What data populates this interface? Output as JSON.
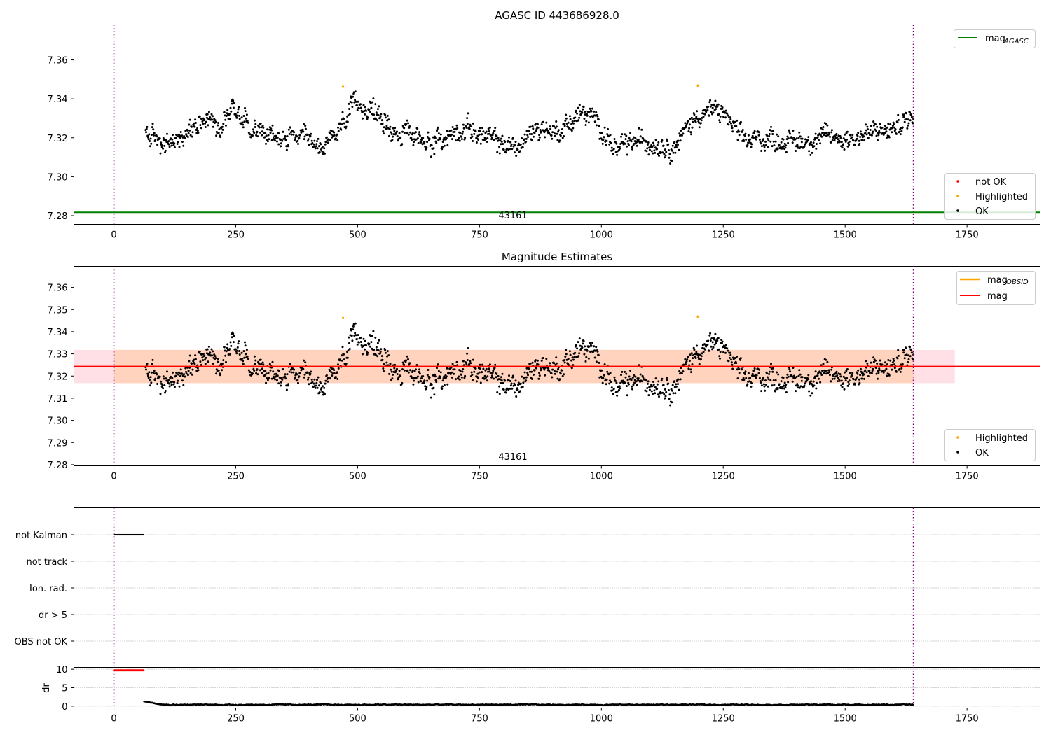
{
  "colors": {
    "ok": "#000000",
    "not_ok": "#ff0000",
    "highlighted": "#ffa500",
    "mag_agasc": "#008000",
    "mag_obsid": "#ffa500",
    "mag": "#ff0000",
    "band_obsid": "#ffd3bd",
    "band_mag": "#ffe0e6",
    "obs_boundary": "#800080",
    "grid": "#b0b0b0"
  },
  "chart_data": [
    {
      "type": "scatter",
      "title": "AGASC ID 443686928.0",
      "xlim": [
        -82,
        1900
      ],
      "ylim": [
        7.2755,
        7.378
      ],
      "xticks": [
        "0",
        "250",
        "500",
        "750",
        "1000",
        "1250",
        "1500",
        "1750"
      ],
      "yticks": [
        "7.28",
        "7.30",
        "7.32",
        "7.34",
        "7.36"
      ],
      "obsid_label": "43161",
      "obs_boundaries": [
        0,
        1640
      ],
      "mag_agasc": 7.2817,
      "highlighted_points": [
        [
          470,
          7.3462
        ],
        [
          1198,
          7.3468
        ]
      ],
      "series": [
        {
          "name": "not OK",
          "values": []
        },
        {
          "name": "Highlighted",
          "values": [
            [
              470,
              7.3462
            ],
            [
              1198,
              7.3468
            ]
          ]
        },
        {
          "name": "OK",
          "x_range": [
            65,
            1640
          ],
          "mean": 7.3243
        }
      ],
      "legend_lines": [
        {
          "label_main": "mag",
          "label_sub": "AGASC"
        }
      ],
      "legend_points": [
        "not OK",
        "Highlighted",
        "OK"
      ]
    },
    {
      "type": "scatter",
      "title": "Magnitude Estimates",
      "xlim": [
        -82,
        1900
      ],
      "ylim": [
        7.2795,
        7.3695
      ],
      "xticks": [
        "0",
        "250",
        "500",
        "750",
        "1000",
        "1250",
        "1500",
        "1750"
      ],
      "yticks": [
        "7.28",
        "7.29",
        "7.30",
        "7.31",
        "7.32",
        "7.33",
        "7.34",
        "7.35",
        "7.36"
      ],
      "obsid_label": "43161",
      "mag_obsid": 7.3243,
      "mag_obsid_range": [
        0,
        1640
      ],
      "mag_obsid_band": [
        7.3168,
        7.3318
      ],
      "mag": 7.3243,
      "mag_range": [
        -82,
        1725
      ],
      "mag_band": [
        7.3168,
        7.3318
      ],
      "highlighted_points": [
        [
          470,
          7.3462
        ],
        [
          1198,
          7.3468
        ]
      ],
      "legend_lines": [
        {
          "label_main": "mag",
          "label_sub": "OBSID"
        },
        {
          "label_main": "mag",
          "label_sub": ""
        }
      ],
      "legend_points": [
        "Highlighted",
        "OK"
      ]
    },
    {
      "type": "scatter",
      "title": "",
      "categories": [
        "not Kalman",
        "not track",
        "Ion. rad.",
        "dr > 5",
        "OBS not OK"
      ],
      "flag_ranges": [
        {
          "category": "not Kalman",
          "x_range": [
            0,
            62
          ]
        }
      ],
      "xlim": [
        -82,
        1900
      ]
    },
    {
      "type": "scatter",
      "ylabel": "dr",
      "xlim": [
        -82,
        1900
      ],
      "ylim": [
        -0.5,
        10.5
      ],
      "xticks": [
        "0",
        "250",
        "500",
        "750",
        "1000",
        "1250",
        "1500",
        "1750"
      ],
      "yticks": [
        "0",
        "5",
        "10"
      ],
      "clipped_points": {
        "x_range": [
          0,
          62
        ],
        "value": 9.7
      },
      "dr_series": {
        "x_range": [
          62,
          1640
        ],
        "start": 1.3,
        "typical": 0.4
      }
    }
  ]
}
